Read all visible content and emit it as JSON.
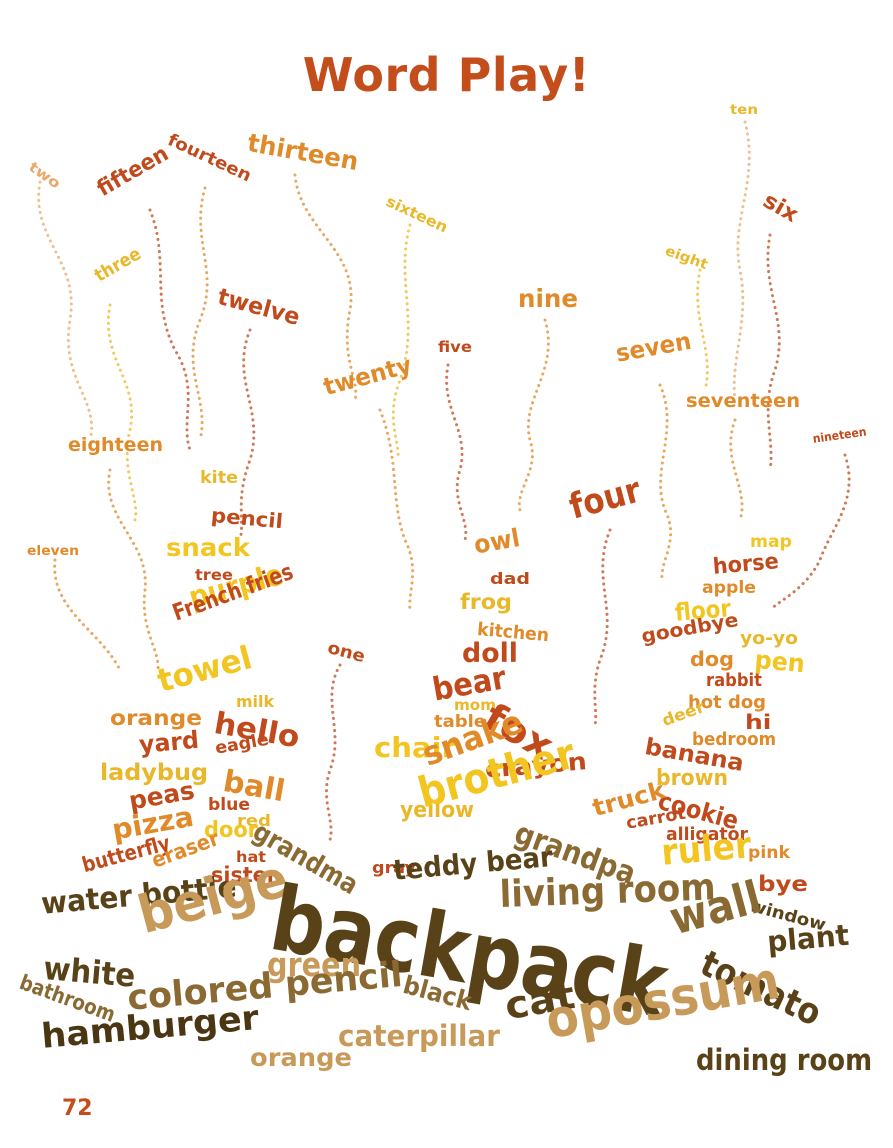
{
  "title": "Word Play!",
  "page_number": "72",
  "colors": {
    "rust": "#c04a1b",
    "orange": "#e08a2a",
    "gold": "#e9b82a",
    "yellow": "#f2c520",
    "peach": "#eaa866",
    "tan": "#c89a5a",
    "brown": "#8a6a32",
    "dark": "#5a4218",
    "darkest": "#4a3612"
  },
  "words": [
    {
      "text": "two",
      "color": "peach"
    },
    {
      "text": "fourteen",
      "color": "rust"
    },
    {
      "text": "thirteen",
      "color": "orange"
    },
    {
      "text": "ten",
      "color": "gold"
    },
    {
      "text": "fifteen",
      "color": "rust"
    },
    {
      "text": "sixteen",
      "color": "gold"
    },
    {
      "text": "six",
      "color": "rust"
    },
    {
      "text": "three",
      "color": "gold"
    },
    {
      "text": "twelve",
      "color": "rust"
    },
    {
      "text": "eight",
      "color": "gold"
    },
    {
      "text": "nine",
      "color": "orange"
    },
    {
      "text": "five",
      "color": "rust"
    },
    {
      "text": "seven",
      "color": "orange"
    },
    {
      "text": "twenty",
      "color": "orange"
    },
    {
      "text": "seventeen",
      "color": "orange"
    },
    {
      "text": "eighteen",
      "color": "orange"
    },
    {
      "text": "nineteen",
      "color": "rust"
    },
    {
      "text": "kite",
      "color": "gold"
    },
    {
      "text": "pencil",
      "color": "rust"
    },
    {
      "text": "four",
      "color": "rust"
    },
    {
      "text": "eleven",
      "color": "orange"
    },
    {
      "text": "snack",
      "color": "yellow"
    },
    {
      "text": "owl",
      "color": "orange"
    },
    {
      "text": "map",
      "color": "yellow"
    },
    {
      "text": "tree",
      "color": "rust"
    },
    {
      "text": "dad",
      "color": "rust"
    },
    {
      "text": "horse",
      "color": "rust"
    },
    {
      "text": "purple",
      "color": "yellow"
    },
    {
      "text": "frog",
      "color": "gold"
    },
    {
      "text": "apple",
      "color": "orange"
    },
    {
      "text": "French fries",
      "color": "rust"
    },
    {
      "text": "kitchen",
      "color": "orange"
    },
    {
      "text": "floor",
      "color": "yellow"
    },
    {
      "text": "one",
      "color": "rust"
    },
    {
      "text": "doll",
      "color": "rust"
    },
    {
      "text": "goodbye",
      "color": "rust"
    },
    {
      "text": "yo-yo",
      "color": "gold"
    },
    {
      "text": "dog",
      "color": "orange"
    },
    {
      "text": "pen",
      "color": "yellow"
    },
    {
      "text": "towel",
      "color": "yellow"
    },
    {
      "text": "bear",
      "color": "rust"
    },
    {
      "text": "rabbit",
      "color": "rust"
    },
    {
      "text": "milk",
      "color": "gold"
    },
    {
      "text": "mom",
      "color": "gold"
    },
    {
      "text": "fox",
      "color": "rust"
    },
    {
      "text": "hot dog",
      "color": "orange"
    },
    {
      "text": "orange",
      "color": "orange"
    },
    {
      "text": "hello",
      "color": "rust"
    },
    {
      "text": "table",
      "color": "orange"
    },
    {
      "text": "hi",
      "color": "rust"
    },
    {
      "text": "deer",
      "color": "gold"
    },
    {
      "text": "bedroom",
      "color": "orange"
    },
    {
      "text": "yard",
      "color": "rust"
    },
    {
      "text": "eagle",
      "color": "rust"
    },
    {
      "text": "chair",
      "color": "yellow"
    },
    {
      "text": "snake",
      "color": "orange"
    },
    {
      "text": "banana",
      "color": "rust"
    },
    {
      "text": "ladybug",
      "color": "gold"
    },
    {
      "text": "crayon",
      "color": "rust"
    },
    {
      "text": "brown",
      "color": "gold"
    },
    {
      "text": "ball",
      "color": "orange"
    },
    {
      "text": "peas",
      "color": "rust"
    },
    {
      "text": "blue",
      "color": "rust"
    },
    {
      "text": "yellow",
      "color": "gold"
    },
    {
      "text": "brother",
      "color": "yellow"
    },
    {
      "text": "cookie",
      "color": "rust"
    },
    {
      "text": "truck",
      "color": "orange"
    },
    {
      "text": "red",
      "color": "gold"
    },
    {
      "text": "carrot",
      "color": "rust"
    },
    {
      "text": "alligator",
      "color": "rust"
    },
    {
      "text": "pizza",
      "color": "orange"
    },
    {
      "text": "door",
      "color": "yellow"
    },
    {
      "text": "grandma",
      "color": "brown"
    },
    {
      "text": "grandpa",
      "color": "brown"
    },
    {
      "text": "ruler",
      "color": "yellow"
    },
    {
      "text": "pink",
      "color": "orange"
    },
    {
      "text": "hat",
      "color": "rust"
    },
    {
      "text": "butterfly",
      "color": "rust"
    },
    {
      "text": "eraser",
      "color": "orange"
    },
    {
      "text": "sister",
      "color": "rust"
    },
    {
      "text": "gray",
      "color": "rust"
    },
    {
      "text": "teddy bear",
      "color": "dark"
    },
    {
      "text": "bye",
      "color": "rust"
    },
    {
      "text": "water bottle",
      "color": "dark"
    },
    {
      "text": "living room",
      "color": "brown"
    },
    {
      "text": "window",
      "color": "dark"
    },
    {
      "text": "beige",
      "color": "tan"
    },
    {
      "text": "backpack",
      "color": "dark"
    },
    {
      "text": "wall",
      "color": "brown"
    },
    {
      "text": "plant",
      "color": "dark"
    },
    {
      "text": "white",
      "color": "dark"
    },
    {
      "text": "green",
      "color": "tan"
    },
    {
      "text": "tomato",
      "color": "dark"
    },
    {
      "text": "bathroom",
      "color": "brown"
    },
    {
      "text": "black",
      "color": "brown"
    },
    {
      "text": "colored pencil",
      "color": "brown"
    },
    {
      "text": "cat",
      "color": "dark"
    },
    {
      "text": "opossum",
      "color": "tan"
    },
    {
      "text": "caterpillar",
      "color": "tan"
    },
    {
      "text": "hamburger",
      "color": "darkest"
    },
    {
      "text": "orange",
      "color": "tan"
    },
    {
      "text": "dining room",
      "color": "dark"
    }
  ]
}
